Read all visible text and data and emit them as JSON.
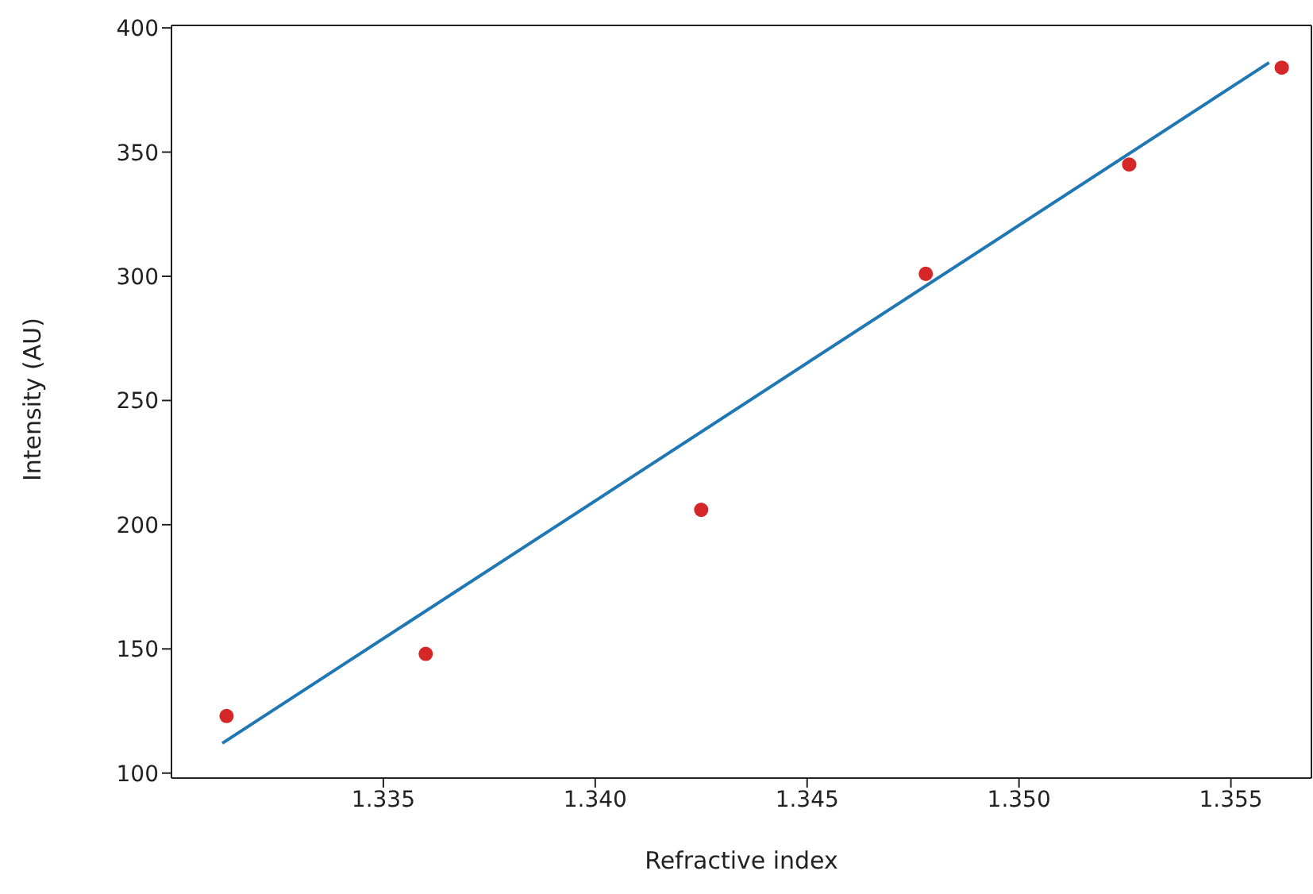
{
  "chart_data": {
    "type": "scatter",
    "xlabel": "Refractive index",
    "ylabel": "Intensity (AU)",
    "xlim": [
      1.33,
      1.3569
    ],
    "ylim": [
      98,
      401
    ],
    "xticks": [
      1.335,
      {
        "value": 1.34,
        "label": "1.340"
      },
      1.345,
      {
        "value": 1.35,
        "label": "1.350"
      },
      1.355
    ],
    "yticks": [
      100,
      150,
      200,
      250,
      300,
      350,
      400
    ],
    "grid": false,
    "legend": false,
    "marker": "circle",
    "series": [
      {
        "type": "scatter",
        "color": "#d62728",
        "x": [
          1.3313,
          1.336,
          1.3425,
          1.3478,
          1.3526,
          1.3562
        ],
        "values": [
          123,
          148,
          206,
          301,
          345,
          384
        ]
      },
      {
        "type": "line",
        "color": "#1f77b4",
        "line_style": "solid",
        "marker": "none",
        "x": [
          1.3312,
          1.3559
        ],
        "values": [
          112,
          386
        ]
      }
    ]
  }
}
